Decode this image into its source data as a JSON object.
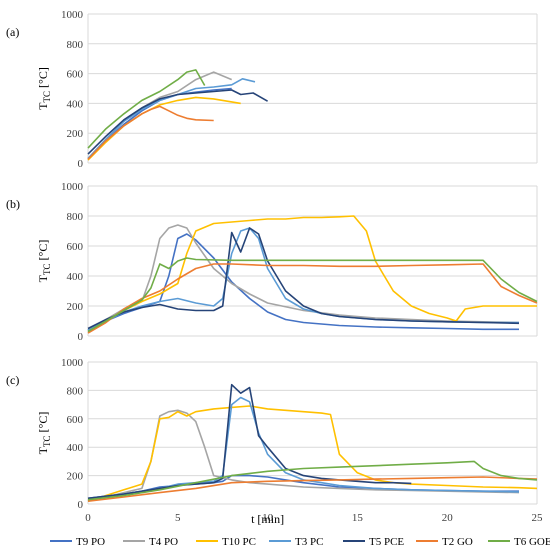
{
  "chart_data": [
    {
      "type": "line",
      "panel": "(a)",
      "ylabel_main": "T",
      "ylabel_sub": "TC",
      "ylabel_unit": " [°C]",
      "ylim": [
        0,
        1000
      ],
      "yticks": [
        0,
        200,
        400,
        600,
        800,
        1000
      ],
      "xlim": [
        0,
        25
      ],
      "grid": true,
      "series": [
        {
          "name": "T9 PO",
          "color": "#4472C4",
          "x": [
            0,
            1,
            2,
            3,
            4,
            5,
            6,
            7,
            8
          ],
          "y": [
            30,
            150,
            260,
            350,
            420,
            460,
            475,
            490,
            500
          ]
        },
        {
          "name": "T4 PO",
          "color": "#A5A5A5",
          "x": [
            0,
            1,
            2,
            3,
            4,
            5,
            6,
            7,
            8
          ],
          "y": [
            30,
            160,
            280,
            370,
            440,
            480,
            560,
            610,
            560
          ]
        },
        {
          "name": "T10 PC",
          "color": "#FFC000",
          "x": [
            0,
            1,
            2,
            3,
            4,
            5,
            6,
            7,
            8.5
          ],
          "y": [
            20,
            140,
            250,
            330,
            390,
            420,
            440,
            430,
            400
          ]
        },
        {
          "name": "T3 PC",
          "color": "#5B9BD5",
          "x": [
            0,
            1,
            2,
            3,
            4,
            5,
            6,
            7,
            8,
            8.6,
            9.3
          ],
          "y": [
            30,
            160,
            280,
            360,
            420,
            460,
            500,
            510,
            525,
            565,
            545
          ]
        },
        {
          "name": "T5 PCE",
          "color": "#264478",
          "x": [
            0,
            1,
            2,
            3,
            4,
            5,
            6,
            7,
            8,
            8.5,
            9.2,
            10
          ],
          "y": [
            60,
            180,
            290,
            370,
            430,
            460,
            470,
            480,
            490,
            460,
            470,
            415
          ]
        },
        {
          "name": "T2 GO",
          "color": "#ED7D31",
          "x": [
            0,
            1,
            2,
            3,
            3.5,
            4,
            4.5,
            5,
            5.5,
            6,
            7
          ],
          "y": [
            25,
            150,
            250,
            330,
            360,
            380,
            350,
            320,
            300,
            290,
            285
          ]
        },
        {
          "name": "T6 GOE",
          "color": "#70AD47",
          "x": [
            0,
            1,
            2,
            3,
            4,
            5,
            5.5,
            6,
            6.5
          ],
          "y": [
            100,
            230,
            330,
            420,
            480,
            560,
            610,
            625,
            520
          ]
        }
      ]
    },
    {
      "type": "line",
      "panel": "(b)",
      "ylabel_main": "T",
      "ylabel_sub": "TC",
      "ylabel_unit": " [°C]",
      "ylim": [
        0,
        1000
      ],
      "yticks": [
        0,
        200,
        400,
        600,
        800,
        1000
      ],
      "xlim": [
        0,
        25
      ],
      "grid": true,
      "series": [
        {
          "name": "T9 PO",
          "color": "#4472C4",
          "x": [
            0,
            1,
            2,
            3,
            4,
            4.5,
            5,
            5.5,
            6,
            7,
            8,
            9,
            10,
            11,
            12,
            14,
            16,
            18,
            20,
            22,
            24
          ],
          "y": [
            40,
            100,
            150,
            190,
            230,
            400,
            650,
            680,
            640,
            520,
            360,
            250,
            160,
            110,
            90,
            70,
            60,
            55,
            50,
            45,
            45
          ]
        },
        {
          "name": "T4 PO",
          "color": "#A5A5A5",
          "x": [
            0,
            1,
            2,
            3,
            3.5,
            4,
            4.5,
            5,
            5.5,
            6,
            7,
            8,
            9,
            10,
            12,
            14,
            16,
            18,
            20,
            22,
            24
          ],
          "y": [
            30,
            110,
            180,
            230,
            400,
            650,
            720,
            740,
            720,
            620,
            450,
            350,
            280,
            220,
            170,
            140,
            120,
            110,
            100,
            95,
            90
          ]
        },
        {
          "name": "T10 PC",
          "color": "#FFC000",
          "x": [
            0,
            1,
            2,
            3,
            4,
            5,
            5.5,
            6,
            7,
            8,
            9,
            10,
            11,
            12,
            13,
            14,
            14.8,
            15.5,
            16,
            17,
            18,
            19,
            20,
            20.5,
            21,
            22,
            23,
            24,
            25
          ],
          "y": [
            30,
            100,
            170,
            230,
            280,
            350,
            550,
            700,
            750,
            760,
            770,
            780,
            780,
            790,
            790,
            795,
            800,
            700,
            500,
            300,
            200,
            150,
            120,
            100,
            180,
            200,
            200,
            200,
            200
          ]
        },
        {
          "name": "T3 PC",
          "color": "#5B9BD5",
          "x": [
            0,
            1,
            2,
            3,
            4,
            5,
            6,
            7,
            7.5,
            8,
            8.5,
            9,
            9.5,
            10,
            11,
            12,
            13,
            14,
            16,
            18,
            20,
            22,
            24
          ],
          "y": [
            40,
            100,
            160,
            200,
            230,
            250,
            220,
            200,
            250,
            550,
            700,
            720,
            650,
            450,
            250,
            180,
            150,
            130,
            110,
            100,
            95,
            90,
            90
          ]
        },
        {
          "name": "T5 PCE",
          "color": "#264478",
          "x": [
            0,
            1,
            2,
            3,
            4,
            5,
            6,
            7,
            7.5,
            8,
            8.5,
            9,
            9.5,
            10,
            11,
            12,
            13,
            14,
            15,
            16,
            18,
            20,
            22,
            24
          ],
          "y": [
            50,
            110,
            160,
            190,
            210,
            180,
            170,
            170,
            200,
            690,
            560,
            720,
            680,
            500,
            300,
            200,
            150,
            130,
            120,
            110,
            100,
            95,
            90,
            85
          ]
        },
        {
          "name": "T2 GO",
          "color": "#ED7D31",
          "x": [
            0,
            1,
            2,
            3,
            4,
            5,
            6,
            7,
            8,
            10,
            12,
            14,
            16,
            18,
            20,
            22,
            23,
            24,
            25
          ],
          "y": [
            20,
            90,
            180,
            250,
            300,
            380,
            450,
            480,
            480,
            470,
            470,
            465,
            465,
            470,
            475,
            480,
            330,
            270,
            220
          ]
        },
        {
          "name": "T6 GOE",
          "color": "#70AD47",
          "x": [
            0,
            1,
            2,
            3,
            3.5,
            4,
            4.5,
            5,
            5.5,
            6,
            8,
            10,
            12,
            14,
            16,
            18,
            20,
            22,
            23,
            24,
            25
          ],
          "y": [
            30,
            100,
            170,
            240,
            320,
            480,
            450,
            500,
            520,
            510,
            505,
            505,
            505,
            505,
            505,
            505,
            505,
            505,
            380,
            290,
            230
          ]
        }
      ]
    },
    {
      "type": "line",
      "panel": "(c)",
      "ylabel_main": "T",
      "ylabel_sub": "TC",
      "ylabel_unit": " [°C]",
      "ylim": [
        0,
        1000
      ],
      "yticks": [
        0,
        200,
        400,
        600,
        800,
        1000
      ],
      "xlim": [
        0,
        25
      ],
      "xticks": [
        0,
        5,
        10,
        15,
        20,
        25
      ],
      "xlabel": "t [min]",
      "grid": true,
      "series": [
        {
          "name": "T9 PO",
          "color": "#4472C4",
          "x": [
            0,
            1,
            2,
            3,
            4,
            5,
            6,
            7,
            7.5,
            8,
            9,
            10,
            11,
            12,
            14,
            16,
            18,
            20,
            22,
            24
          ],
          "y": [
            40,
            55,
            70,
            90,
            120,
            130,
            140,
            150,
            160,
            200,
            200,
            190,
            170,
            150,
            120,
            110,
            100,
            95,
            90,
            90
          ]
        },
        {
          "name": "T4 PO",
          "color": "#A5A5A5",
          "x": [
            0,
            1,
            2,
            3,
            3.5,
            4,
            4.5,
            5,
            5.5,
            6,
            6.5,
            7,
            8,
            9,
            10,
            12,
            14,
            16,
            18,
            20,
            22,
            24
          ],
          "y": [
            30,
            50,
            80,
            110,
            300,
            620,
            650,
            660,
            640,
            580,
            400,
            200,
            170,
            150,
            140,
            120,
            110,
            100,
            95,
            90,
            85,
            80
          ]
        },
        {
          "name": "T10 PC",
          "color": "#FFC000",
          "x": [
            0,
            1,
            2,
            3,
            3.5,
            4,
            4.5,
            5,
            5.5,
            6,
            7,
            8,
            9,
            10,
            11,
            12,
            13,
            13.5,
            14,
            15,
            16,
            17,
            18,
            20,
            22,
            24,
            25
          ],
          "y": [
            20,
            60,
            100,
            140,
            300,
            600,
            610,
            650,
            620,
            650,
            670,
            680,
            690,
            670,
            660,
            650,
            640,
            630,
            350,
            220,
            170,
            150,
            140,
            130,
            120,
            115,
            110
          ]
        },
        {
          "name": "T3 PC",
          "color": "#5B9BD5",
          "x": [
            0,
            1,
            2,
            3,
            4,
            5,
            6,
            7,
            7.5,
            8,
            8.5,
            9,
            9.5,
            10,
            11,
            12,
            13,
            14,
            16,
            18,
            20,
            22,
            24
          ],
          "y": [
            40,
            55,
            70,
            90,
            110,
            140,
            150,
            160,
            200,
            700,
            750,
            720,
            500,
            350,
            220,
            170,
            150,
            130,
            110,
            100,
            95,
            90,
            85
          ]
        },
        {
          "name": "T5 PCE",
          "color": "#264478",
          "x": [
            0,
            1,
            2,
            3,
            4,
            5,
            6,
            7,
            7.5,
            8,
            8.5,
            9,
            9.5,
            10,
            11,
            12,
            13,
            14,
            15,
            16,
            17,
            18
          ],
          "y": [
            40,
            55,
            70,
            90,
            110,
            130,
            140,
            150,
            180,
            840,
            780,
            820,
            480,
            400,
            250,
            200,
            180,
            170,
            160,
            150,
            150,
            145
          ]
        },
        {
          "name": "T2 GO",
          "color": "#ED7D31",
          "x": [
            0,
            2,
            4,
            6,
            8,
            10,
            12,
            14,
            16,
            18,
            20,
            22,
            24,
            25
          ],
          "y": [
            20,
            50,
            80,
            110,
            150,
            160,
            165,
            170,
            175,
            180,
            185,
            190,
            180,
            175
          ]
        },
        {
          "name": "T6 GOE",
          "color": "#70AD47",
          "x": [
            0,
            2,
            4,
            6,
            8,
            10,
            12,
            14,
            16,
            18,
            20,
            21.5,
            22,
            23,
            24,
            25
          ],
          "y": [
            30,
            60,
            100,
            150,
            200,
            230,
            250,
            260,
            270,
            280,
            290,
            300,
            250,
            200,
            180,
            170
          ]
        }
      ]
    }
  ],
  "legend": [
    {
      "name": "T9 PO",
      "color": "#4472C4"
    },
    {
      "name": "T4 PO",
      "color": "#A5A5A5"
    },
    {
      "name": "T10 PC",
      "color": "#FFC000"
    },
    {
      "name": "T3 PC",
      "color": "#5B9BD5"
    },
    {
      "name": "T5 PCE",
      "color": "#264478"
    },
    {
      "name": "T2 GO",
      "color": "#ED7D31"
    },
    {
      "name": "T6 GOE",
      "color": "#70AD47"
    }
  ]
}
